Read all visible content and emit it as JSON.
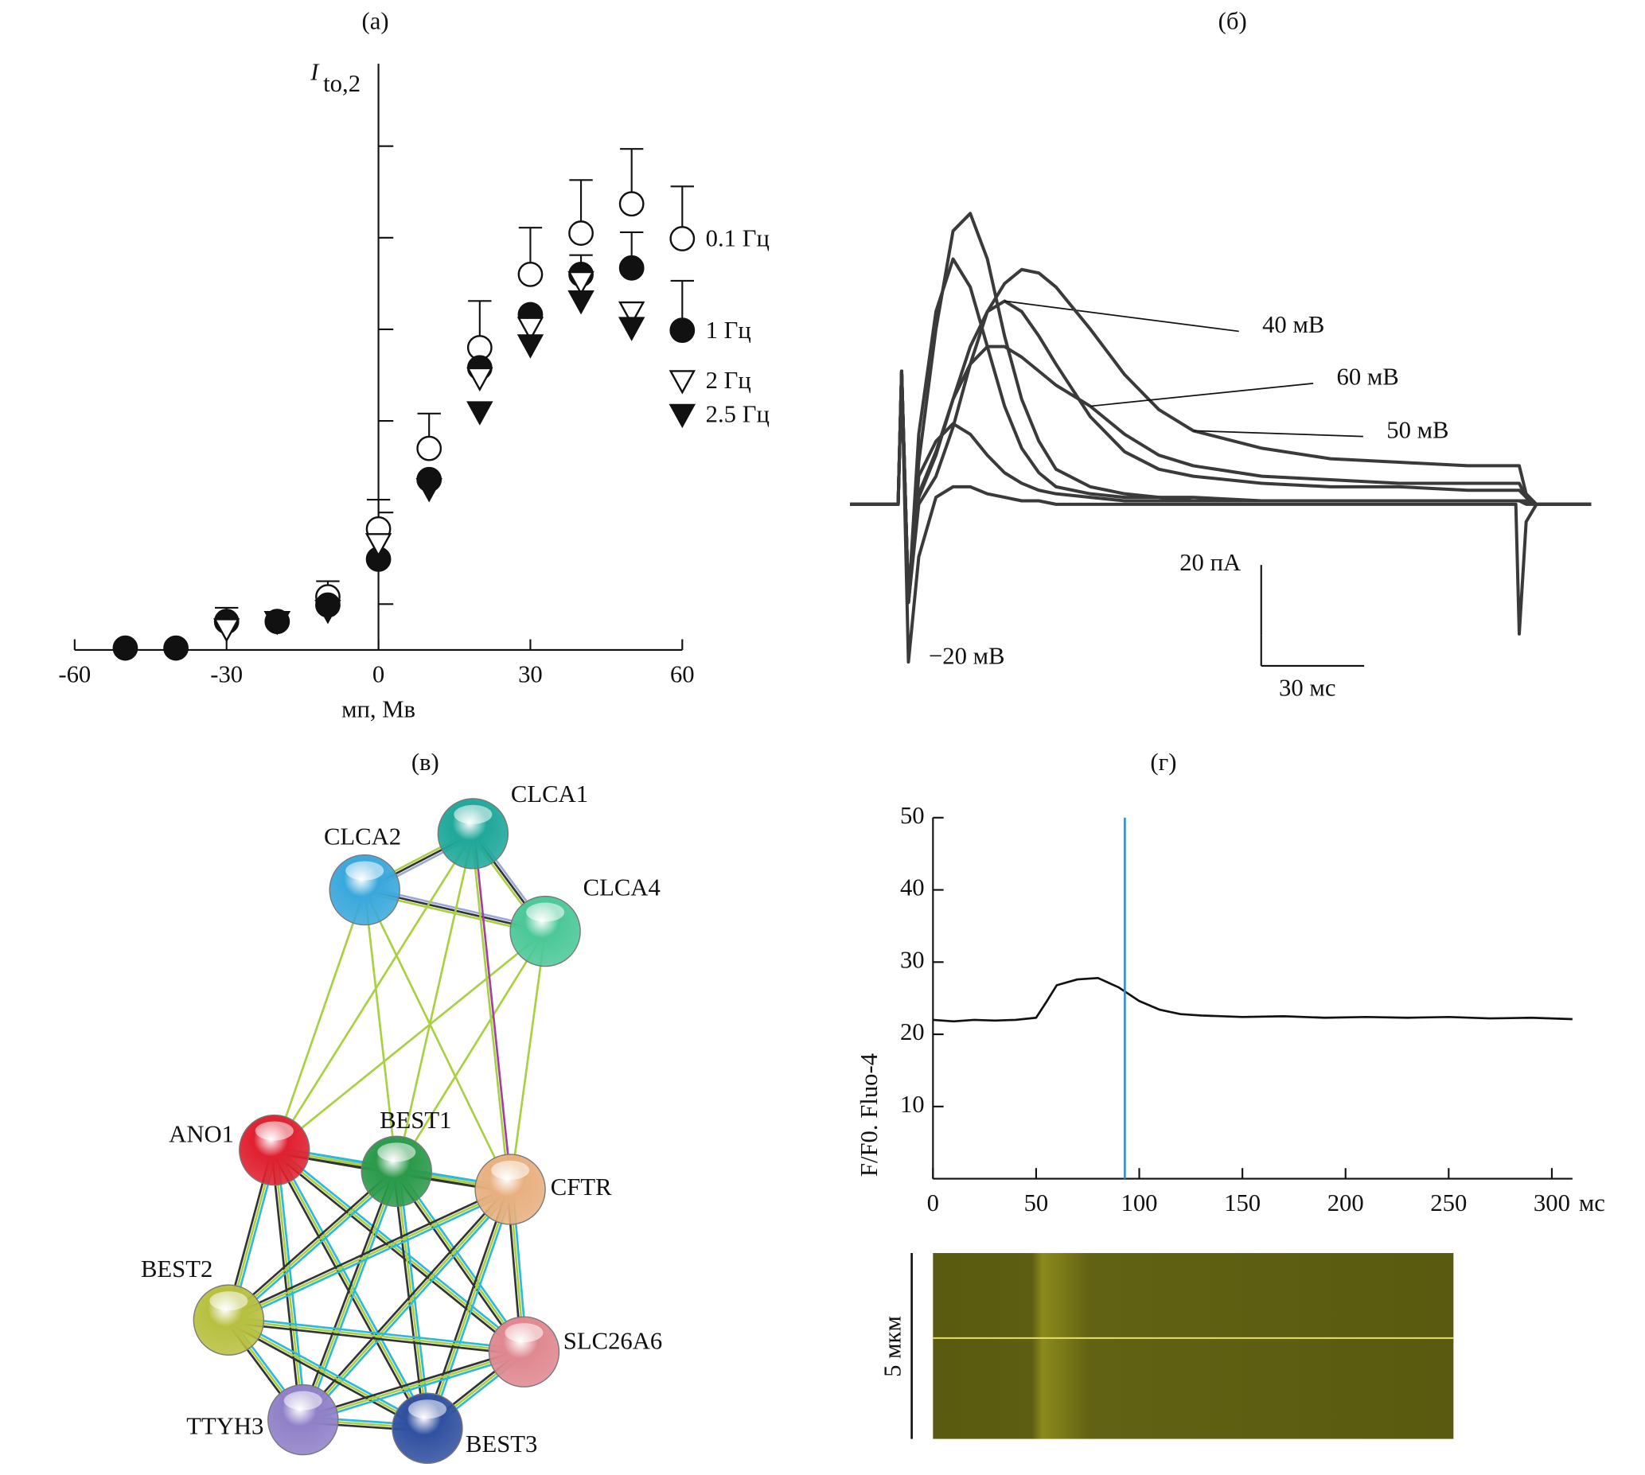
{
  "chart_data": [
    {
      "type": "scatter",
      "title": "(а)",
      "xlabel": "мп, Мв",
      "ylabel": "I",
      "ylabel_subscript": "to,2",
      "x": [
        -50,
        -40,
        -30,
        -20,
        -10,
        0,
        10,
        20,
        30,
        40,
        50,
        60
      ],
      "xlim": [
        -60,
        60
      ],
      "xticks": [
        -60,
        -30,
        0,
        30,
        60
      ],
      "ylim": [
        0,
        6.4
      ],
      "yticks": [
        0.5,
        1.5,
        2.5,
        3.5,
        4.5,
        5.5
      ],
      "legend": "right",
      "series": [
        {
          "name": "0.1 Гц",
          "marker": "circle",
          "filled": false,
          "color": "#111",
          "values": [
            null,
            null,
            null,
            null,
            0.58,
            1.32,
            2.2,
            3.3,
            4.1,
            4.55,
            4.87,
            4.49
          ],
          "errors": [
            null,
            null,
            null,
            null,
            0.17,
            0.32,
            0.38,
            0.51,
            0.51,
            0.58,
            0.6,
            0.57
          ]
        },
        {
          "name": "1 Гц",
          "marker": "circle",
          "filled": true,
          "color": "#111",
          "values": [
            0.02,
            0.02,
            0.31,
            0.31,
            0.49,
            0.99,
            1.86,
            3.08,
            3.66,
            4.1,
            4.17,
            3.49
          ],
          "errors": [
            null,
            null,
            0.15,
            null,
            null,
            null,
            null,
            null,
            null,
            0.21,
            0.39,
            0.54
          ]
        },
        {
          "name": "2 Гц",
          "marker": "triangle-down",
          "filled": false,
          "color": "#111",
          "values": [
            null,
            null,
            0.23,
            0.31,
            null,
            1.16,
            null,
            2.97,
            3.52,
            4.02,
            3.69,
            2.94
          ]
        },
        {
          "name": "2.5 Гц",
          "marker": "triangle-down",
          "filled": true,
          "color": "#111",
          "values": [
            null,
            null,
            null,
            0.31,
            0.43,
            null,
            1.76,
            2.6,
            3.33,
            3.81,
            3.52,
            2.57
          ]
        }
      ]
    },
    {
      "type": "line",
      "title": "(б)",
      "x": [
        0,
        14,
        15,
        17,
        20,
        25,
        30,
        35,
        40,
        45,
        50,
        55,
        60,
        70,
        80,
        90,
        100,
        120,
        140,
        160,
        180,
        194,
        195,
        197,
        200,
        216
      ],
      "xlim": [
        0,
        216.7
      ],
      "ylim": [
        -47,
        83
      ],
      "series": [
        {
          "color": "#3a3a3a",
          "values": [
            0,
            0,
            38,
            -28,
            12,
            50,
            78,
            83,
            70,
            48,
            30,
            18,
            10,
            5,
            3,
            2,
            2,
            1,
            1,
            1,
            1,
            1,
            1,
            1,
            0,
            0
          ]
        },
        {
          "color": "#3a3a3a",
          "values": [
            0,
            0,
            38,
            -28,
            20,
            55,
            70,
            62,
            45,
            28,
            16,
            9,
            5,
            3,
            2,
            2,
            1,
            1,
            1,
            1,
            1,
            1,
            1,
            1,
            0,
            0
          ]
        },
        {
          "name": "40 мВ",
          "color": "#3a3a3a",
          "values": [
            0,
            0,
            38,
            -28,
            2,
            14,
            30,
            45,
            55,
            58,
            55,
            48,
            40,
            25,
            15,
            10,
            8,
            6,
            5,
            5,
            4,
            4,
            4,
            2,
            0,
            0
          ]
        },
        {
          "name": "50 мВ",
          "color": "#3a3a3a",
          "values": [
            0,
            0,
            38,
            -28,
            0,
            8,
            22,
            40,
            55,
            63,
            67,
            66,
            62,
            50,
            37,
            27,
            21,
            16,
            13,
            12,
            11,
            11,
            11,
            3,
            0,
            0
          ]
        },
        {
          "name": "60 мВ",
          "color": "#3a3a3a",
          "values": [
            0,
            0,
            38,
            -28,
            3,
            15,
            30,
            40,
            45,
            45,
            42,
            38,
            34,
            28,
            20,
            14,
            11,
            8,
            7,
            6,
            6,
            6,
            6,
            2,
            0,
            0
          ]
        },
        {
          "color": "#3a3a3a",
          "values": [
            0,
            0,
            38,
            -28,
            8,
            18,
            23,
            20,
            14,
            9,
            6,
            4,
            3,
            2,
            1,
            1,
            1,
            1,
            1,
            1,
            1,
            1,
            1,
            0,
            0,
            0
          ]
        },
        {
          "name": "−20 мВ",
          "color": "#3a3a3a",
          "values": [
            0,
            0,
            38,
            -45,
            -15,
            2,
            5,
            5,
            3,
            2,
            1,
            1,
            0,
            0,
            0,
            0,
            0,
            0,
            0,
            0,
            0,
            0,
            -37,
            -5,
            0,
            0
          ]
        }
      ],
      "scalebar": {
        "y_value": 20,
        "y_label": "20 пА",
        "x_value": 30,
        "x_label": "30 мс"
      }
    },
    {
      "type": "line",
      "title": "(г)",
      "xlabel": "мс",
      "ylabel": "F/F0. Fluo-4",
      "x": [
        0,
        10,
        20,
        30,
        40,
        50,
        55,
        60,
        70,
        80,
        90,
        100,
        110,
        120,
        130,
        150,
        170,
        190,
        210,
        230,
        250,
        270,
        290,
        310
      ],
      "values": [
        22,
        21.8,
        22,
        21.9,
        22,
        22.3,
        24.5,
        26.8,
        27.6,
        27.8,
        26.5,
        24.6,
        23.4,
        22.8,
        22.6,
        22.4,
        22.5,
        22.3,
        22.4,
        22.3,
        22.4,
        22.2,
        22.3,
        22.1
      ],
      "color": "#111",
      "xlim": [
        0,
        310
      ],
      "xticks": [
        0,
        50,
        100,
        150,
        200,
        250,
        300
      ],
      "ylim": [
        0,
        50
      ],
      "yticks": [
        10,
        20,
        30,
        40,
        50
      ],
      "marker_line": {
        "x": 93,
        "color": "#3a8fc8"
      },
      "linescan": {
        "label": "5 мкм"
      }
    }
  ],
  "network": {
    "title": "(в)",
    "nodes": [
      {
        "label": "CLCA1",
        "color": "#1fa89a"
      },
      {
        "label": "CLCA2",
        "color": "#3aa8dc"
      },
      {
        "label": "CLCA4",
        "color": "#4bc898"
      },
      {
        "label": "ANO1",
        "color": "#e02030"
      },
      {
        "label": "BEST1",
        "color": "#2a9a4a"
      },
      {
        "label": "CFTR",
        "color": "#e8b080"
      },
      {
        "label": "BEST2",
        "color": "#b8c040"
      },
      {
        "label": "SLC26A6",
        "color": "#e08890"
      },
      {
        "label": "TTYH3",
        "color": "#9080c8"
      },
      {
        "label": "BEST3",
        "color": "#3050a0"
      }
    ]
  }
}
